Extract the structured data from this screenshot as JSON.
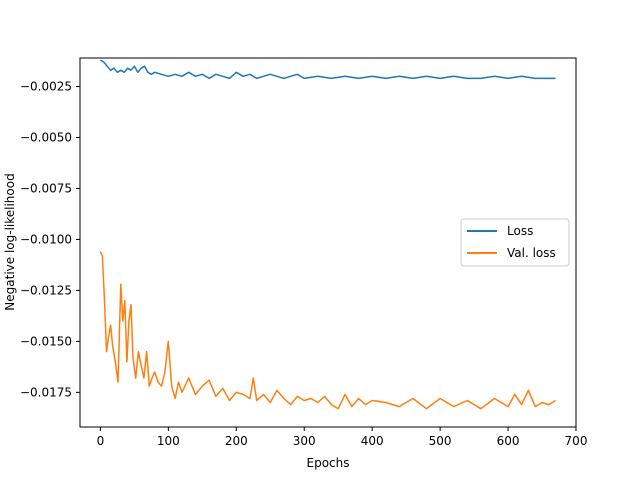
{
  "chart_data": {
    "type": "line",
    "title": "",
    "xlabel": "Epochs",
    "ylabel": "Negative log-likelihood",
    "xlim": [
      -30,
      700
    ],
    "ylim": [
      -0.0192,
      -0.0011
    ],
    "xticks": [
      0,
      100,
      200,
      300,
      400,
      500,
      600,
      700
    ],
    "xtick_labels": [
      "0",
      "100",
      "200",
      "300",
      "400",
      "500",
      "600",
      "700"
    ],
    "yticks": [
      -0.0025,
      -0.005,
      -0.0075,
      -0.01,
      -0.0125,
      -0.015,
      -0.0175
    ],
    "ytick_labels": [
      "−0.0025",
      "−0.0050",
      "−0.0075",
      "−0.0100",
      "−0.0125",
      "−0.0150",
      "−0.0175"
    ],
    "grid": false,
    "legend_position": "center-right",
    "series": [
      {
        "name": "Loss",
        "color": "#1f77b4",
        "x": [
          0,
          5,
          10,
          15,
          20,
          25,
          30,
          35,
          40,
          45,
          50,
          55,
          60,
          65,
          70,
          75,
          80,
          90,
          100,
          110,
          120,
          130,
          140,
          150,
          160,
          170,
          180,
          190,
          200,
          210,
          220,
          230,
          240,
          250,
          260,
          270,
          280,
          290,
          300,
          320,
          340,
          360,
          380,
          400,
          420,
          440,
          460,
          480,
          500,
          520,
          540,
          560,
          580,
          600,
          620,
          640,
          660,
          670
        ],
        "y": [
          -0.0012,
          -0.0013,
          -0.0015,
          -0.0017,
          -0.0016,
          -0.0018,
          -0.0017,
          -0.0018,
          -0.0016,
          -0.0017,
          -0.0015,
          -0.0018,
          -0.0016,
          -0.0015,
          -0.0018,
          -0.0019,
          -0.0018,
          -0.0019,
          -0.002,
          -0.0019,
          -0.002,
          -0.0018,
          -0.002,
          -0.0019,
          -0.0021,
          -0.0019,
          -0.002,
          -0.0021,
          -0.0018,
          -0.002,
          -0.0019,
          -0.0021,
          -0.002,
          -0.0019,
          -0.002,
          -0.0021,
          -0.002,
          -0.0019,
          -0.0021,
          -0.002,
          -0.0021,
          -0.002,
          -0.0021,
          -0.002,
          -0.0021,
          -0.002,
          -0.0021,
          -0.002,
          -0.0021,
          -0.002,
          -0.0021,
          -0.0021,
          -0.002,
          -0.0021,
          -0.002,
          -0.0021,
          -0.0021,
          -0.0021
        ]
      },
      {
        "name": "Val. loss",
        "color": "#ff7f0e",
        "x": [
          0,
          3,
          6,
          9,
          12,
          15,
          18,
          22,
          26,
          30,
          33,
          36,
          39,
          42,
          45,
          48,
          52,
          56,
          60,
          64,
          68,
          72,
          76,
          80,
          85,
          90,
          95,
          100,
          105,
          110,
          115,
          120,
          130,
          140,
          150,
          160,
          170,
          180,
          190,
          200,
          210,
          220,
          225,
          230,
          240,
          250,
          260,
          270,
          280,
          290,
          300,
          310,
          320,
          330,
          340,
          350,
          360,
          370,
          380,
          390,
          400,
          420,
          440,
          460,
          480,
          500,
          520,
          540,
          560,
          580,
          600,
          610,
          620,
          630,
          640,
          650,
          660,
          670
        ],
        "y": [
          -0.0106,
          -0.0108,
          -0.013,
          -0.0155,
          -0.0148,
          -0.0142,
          -0.0152,
          -0.016,
          -0.017,
          -0.0122,
          -0.014,
          -0.013,
          -0.016,
          -0.014,
          -0.0132,
          -0.0158,
          -0.0168,
          -0.0155,
          -0.0162,
          -0.0168,
          -0.0155,
          -0.0172,
          -0.0168,
          -0.0165,
          -0.017,
          -0.0172,
          -0.0165,
          -0.015,
          -0.0172,
          -0.0178,
          -0.017,
          -0.0175,
          -0.0168,
          -0.0176,
          -0.0172,
          -0.0169,
          -0.0177,
          -0.0173,
          -0.0179,
          -0.0175,
          -0.0176,
          -0.0178,
          -0.0168,
          -0.0179,
          -0.0176,
          -0.018,
          -0.0174,
          -0.0178,
          -0.0181,
          -0.0177,
          -0.0179,
          -0.0178,
          -0.018,
          -0.0177,
          -0.0181,
          -0.0183,
          -0.0176,
          -0.0182,
          -0.0178,
          -0.0181,
          -0.0179,
          -0.018,
          -0.0182,
          -0.0178,
          -0.0183,
          -0.0178,
          -0.0182,
          -0.0179,
          -0.0183,
          -0.0178,
          -0.0182,
          -0.0176,
          -0.0181,
          -0.0174,
          -0.0182,
          -0.018,
          -0.0181,
          -0.0179
        ]
      }
    ]
  }
}
